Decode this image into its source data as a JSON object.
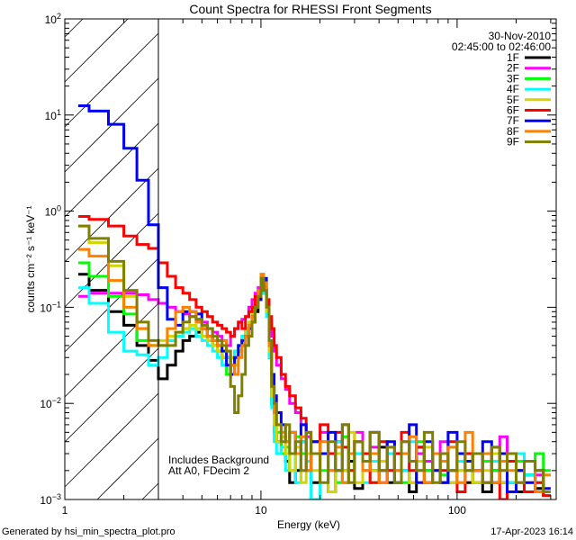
{
  "chart_data": {
    "type": "line",
    "step": true,
    "title": "Count Spectra for RHESSI Front Segments",
    "xlabel": "Energy (keV)",
    "ylabel": "counts cm⁻² s⁻¹ keV⁻¹",
    "xscale": "log",
    "yscale": "log",
    "xlim": [
      1,
      320
    ],
    "ylim": [
      0.001,
      100
    ],
    "xticks": [
      {
        "value": 1,
        "label": "1"
      },
      {
        "value": 10,
        "label": "10"
      },
      {
        "value": 100,
        "label": "100"
      }
    ],
    "yticks": [
      {
        "value": 100,
        "base": "10",
        "exp": "2"
      },
      {
        "value": 10,
        "base": "10",
        "exp": "1"
      },
      {
        "value": 1,
        "base": "10",
        "exp": "0"
      },
      {
        "value": 0.1,
        "base": "10",
        "exp": "−1"
      },
      {
        "value": 0.01,
        "base": "10",
        "exp": "−2"
      },
      {
        "value": 0.001,
        "base": "10",
        "exp": "−3"
      }
    ],
    "legend_header": [
      "30-Nov-2010",
      "02:45:00 to 02:46:00"
    ],
    "legend_placement": "top-right",
    "excluded_region_keV": [
      1,
      3
    ],
    "annotations": [
      "Includes Background",
      "Att A0, FDecim 2"
    ],
    "energy_edges": [
      1.17,
      1.33,
      1.67,
      2.0,
      2.33,
      2.67,
      3.0,
      3.33,
      3.67,
      4.0,
      4.33,
      4.67,
      5.0,
      5.33,
      5.67,
      6.0,
      6.33,
      6.67,
      7.0,
      7.33,
      7.67,
      8.0,
      8.33,
      8.67,
      9.0,
      9.33,
      9.67,
      10.0,
      10.33,
      10.67,
      11.0,
      11.33,
      11.67,
      12.0,
      12.67,
      13.33,
      14,
      15,
      16,
      17,
      18,
      20,
      22,
      24,
      26,
      28,
      30,
      33,
      36,
      40,
      44,
      48,
      52,
      57,
      62,
      68,
      75,
      82,
      90,
      100,
      110,
      120,
      135,
      150,
      165,
      180,
      200,
      220,
      250,
      275,
      300
    ],
    "series": [
      {
        "name": "1F",
        "color": "#000000",
        "values": [
          0.22,
          0.15,
          0.09,
          0.065,
          0.04,
          0.028,
          0.018,
          0.025,
          0.035,
          0.045,
          0.05,
          0.055,
          0.06,
          0.05,
          0.04,
          0.035,
          0.03,
          0.03,
          0.025,
          0.03,
          0.035,
          0.04,
          0.05,
          0.06,
          0.07,
          0.09,
          0.12,
          0.16,
          0.14,
          0.09,
          0.03,
          0.01,
          0.005,
          0.004,
          0.003,
          0.0025,
          0.0015,
          0.002,
          0.004,
          0.003,
          0.0015,
          0.003,
          0.0012,
          0.004,
          0.002,
          0.0025,
          0.0013,
          0.003,
          0.002,
          0.0035,
          0.0015,
          0.003,
          0.002,
          0.0012,
          0.0035,
          0.002,
          0.003,
          0.0015,
          0.002,
          0.0025,
          0.0015,
          0.003,
          0.0012,
          0.002,
          0.0015,
          0.0025,
          0.0012,
          0.0018,
          0.0013,
          0.0011
        ]
      },
      {
        "name": "2F",
        "color": "#ff00ff",
        "values": [
          0.13,
          0.14,
          0.14,
          0.14,
          0.135,
          0.12,
          0.11,
          0.1,
          0.09,
          0.085,
          0.08,
          0.075,
          0.07,
          0.06,
          0.055,
          0.05,
          0.045,
          0.04,
          0.05,
          0.06,
          0.07,
          0.075,
          0.08,
          0.1,
          0.12,
          0.14,
          0.16,
          0.19,
          0.15,
          0.11,
          0.07,
          0.05,
          0.035,
          0.025,
          0.018,
          0.014,
          0.01,
          0.008,
          0.006,
          0.0045,
          0.003,
          0.005,
          0.002,
          0.004,
          0.0015,
          0.003,
          0.005,
          0.002,
          0.0035,
          0.0015,
          0.003,
          0.002,
          0.004,
          0.0015,
          0.003,
          0.0025,
          0.002,
          0.004,
          0.0015,
          0.003,
          0.002,
          0.0015,
          0.003,
          0.002,
          0.0045,
          0.0015,
          0.002,
          0.0012,
          0.0018,
          0.0011
        ]
      },
      {
        "name": "3F",
        "color": "#00ff00",
        "values": [
          0.29,
          0.21,
          0.13,
          0.085,
          0.045,
          0.04,
          0.04,
          0.045,
          0.05,
          0.06,
          0.06,
          0.06,
          0.05,
          0.045,
          0.04,
          0.035,
          0.025,
          0.02,
          0.03,
          0.035,
          0.04,
          0.05,
          0.06,
          0.07,
          0.08,
          0.1,
          0.14,
          0.22,
          0.15,
          0.1,
          0.04,
          0.015,
          0.007,
          0.005,
          0.003,
          0.0035,
          0.002,
          0.0045,
          0.003,
          0.0025,
          0.004,
          0.002,
          0.003,
          0.0015,
          0.0045,
          0.002,
          0.003,
          0.0025,
          0.0015,
          0.004,
          0.002,
          0.003,
          0.0015,
          0.0025,
          0.004,
          0.002,
          0.003,
          0.0018,
          0.0035,
          0.002,
          0.003,
          0.0015,
          0.0025,
          0.002,
          0.003,
          0.0015,
          0.0025,
          0.0018,
          0.003,
          0.002
        ]
      },
      {
        "name": "4F",
        "color": "#00ffff",
        "values": [
          0.16,
          0.11,
          0.055,
          0.035,
          0.032,
          0.025,
          0.03,
          0.045,
          0.05,
          0.055,
          0.06,
          0.05,
          0.045,
          0.04,
          0.035,
          0.03,
          0.025,
          0.03,
          0.025,
          0.035,
          0.04,
          0.05,
          0.055,
          0.065,
          0.08,
          0.1,
          0.13,
          0.18,
          0.14,
          0.08,
          0.03,
          0.009,
          0.004,
          0.003,
          0.0035,
          0.002,
          0.003,
          0.0015,
          0.004,
          0.0025,
          0.001,
          0.003,
          0.002,
          0.004,
          0.0015,
          0.002,
          0.003,
          0.0015,
          0.0025,
          0.002,
          0.003,
          0.0015,
          0.002,
          0.004,
          0.0025,
          0.0015,
          0.003,
          0.002,
          0.0015,
          0.0025,
          0.002,
          0.003,
          0.0015,
          0.0025,
          0.002,
          0.0015,
          0.003,
          0.0018,
          0.0015,
          0.0012
        ]
      },
      {
        "name": "5F",
        "color": "#d4d400",
        "values": [
          0.7,
          0.47,
          0.27,
          0.13,
          0.06,
          0.04,
          0.045,
          0.05,
          0.055,
          0.06,
          0.065,
          0.06,
          0.05,
          0.045,
          0.04,
          0.035,
          0.03,
          0.035,
          0.03,
          0.025,
          0.035,
          0.045,
          0.06,
          0.07,
          0.09,
          0.11,
          0.14,
          0.2,
          0.15,
          0.09,
          0.035,
          0.012,
          0.006,
          0.004,
          0.0045,
          0.003,
          0.002,
          0.0035,
          0.0015,
          0.003,
          0.002,
          0.004,
          0.0012,
          0.003,
          0.002,
          0.005,
          0.0015,
          0.003,
          0.002,
          0.0025,
          0.004,
          0.002,
          0.003,
          0.0015,
          0.0025,
          0.0035,
          0.002,
          0.003,
          0.0015,
          0.002,
          0.0025,
          0.0015,
          0.002,
          0.003,
          0.0015,
          0.0025,
          0.002,
          0.0015,
          0.0012,
          0.0011
        ]
      },
      {
        "name": "6F",
        "color": "#ff0000",
        "values": [
          0.88,
          0.82,
          0.7,
          0.55,
          0.45,
          0.41,
          0.29,
          0.21,
          0.16,
          0.14,
          0.12,
          0.1,
          0.09,
          0.08,
          0.07,
          0.065,
          0.06,
          0.055,
          0.05,
          0.06,
          0.07,
          0.06,
          0.08,
          0.09,
          0.1,
          0.13,
          0.15,
          0.18,
          0.16,
          0.12,
          0.08,
          0.06,
          0.04,
          0.03,
          0.02,
          0.015,
          0.012,
          0.009,
          0.007,
          0.005,
          0.004,
          0.006,
          0.003,
          0.005,
          0.0035,
          0.002,
          0.004,
          0.003,
          0.0015,
          0.004,
          0.002,
          0.003,
          0.005,
          0.002,
          0.0035,
          0.0015,
          0.003,
          0.002,
          0.004,
          0.0012,
          0.003,
          0.002,
          0.0015,
          0.0035,
          0.001,
          0.0025,
          0.002,
          0.0012,
          0.0015,
          0.0011
        ]
      },
      {
        "name": "7F",
        "color": "#0000ff",
        "values": [
          12.5,
          11,
          8,
          4.5,
          2.1,
          0.72,
          0.16,
          0.075,
          0.065,
          0.09,
          0.09,
          0.085,
          0.06,
          0.05,
          0.045,
          0.04,
          0.035,
          0.025,
          0.02,
          0.03,
          0.04,
          0.045,
          0.05,
          0.06,
          0.08,
          0.1,
          0.12,
          0.15,
          0.2,
          0.1,
          0.04,
          0.02,
          0.012,
          0.008,
          0.006,
          0.004,
          0.005,
          0.003,
          0.006,
          0.002,
          0.004,
          0.003,
          0.005,
          0.002,
          0.006,
          0.003,
          0.004,
          0.0025,
          0.005,
          0.002,
          0.004,
          0.0015,
          0.003,
          0.006,
          0.0015,
          0.004,
          0.002,
          0.0015,
          0.005,
          0.003,
          0.0025,
          0.002,
          0.004,
          0.0015,
          0.003,
          0.0012,
          0.002,
          0.0015,
          0.002,
          0.0013
        ]
      },
      {
        "name": "8F",
        "color": "#ff8000",
        "values": [
          0.4,
          0.34,
          0.19,
          0.1,
          0.06,
          0.04,
          0.04,
          0.06,
          0.09,
          0.1,
          0.09,
          0.07,
          0.06,
          0.05,
          0.045,
          0.04,
          0.045,
          0.035,
          0.025,
          0.02,
          0.03,
          0.04,
          0.05,
          0.065,
          0.08,
          0.1,
          0.15,
          0.22,
          0.18,
          0.1,
          0.04,
          0.015,
          0.008,
          0.006,
          0.005,
          0.004,
          0.005,
          0.003,
          0.0045,
          0.002,
          0.003,
          0.004,
          0.002,
          0.0035,
          0.0015,
          0.003,
          0.004,
          0.002,
          0.003,
          0.0015,
          0.0035,
          0.002,
          0.003,
          0.0045,
          0.002,
          0.0015,
          0.003,
          0.0025,
          0.0035,
          0.0015,
          0.005,
          0.002,
          0.003,
          0.0015,
          0.0025,
          0.002,
          0.0015,
          0.0025,
          0.0012,
          0.0018
        ]
      },
      {
        "name": "9F",
        "color": "#808000",
        "values": [
          0.7,
          0.52,
          0.3,
          0.15,
          0.07,
          0.045,
          0.04,
          0.04,
          0.055,
          0.07,
          0.08,
          0.075,
          0.065,
          0.06,
          0.05,
          0.045,
          0.04,
          0.035,
          0.015,
          0.008,
          0.012,
          0.02,
          0.04,
          0.05,
          0.07,
          0.1,
          0.13,
          0.2,
          0.15,
          0.1,
          0.045,
          0.015,
          0.01,
          0.006,
          0.004,
          0.006,
          0.003,
          0.004,
          0.002,
          0.005,
          0.003,
          0.0015,
          0.004,
          0.002,
          0.006,
          0.0015,
          0.004,
          0.0025,
          0.005,
          0.002,
          0.0035,
          0.0015,
          0.004,
          0.0025,
          0.002,
          0.005,
          0.0015,
          0.003,
          0.002,
          0.004,
          0.002,
          0.003,
          0.0015,
          0.0035,
          0.002,
          0.003,
          0.0015,
          0.0025,
          0.002,
          0.0012
        ]
      }
    ]
  },
  "footer": {
    "generated_by": "Generated by hsi_min_spectra_plot.pro",
    "timestamp": "17-Apr-2023 16:14"
  }
}
